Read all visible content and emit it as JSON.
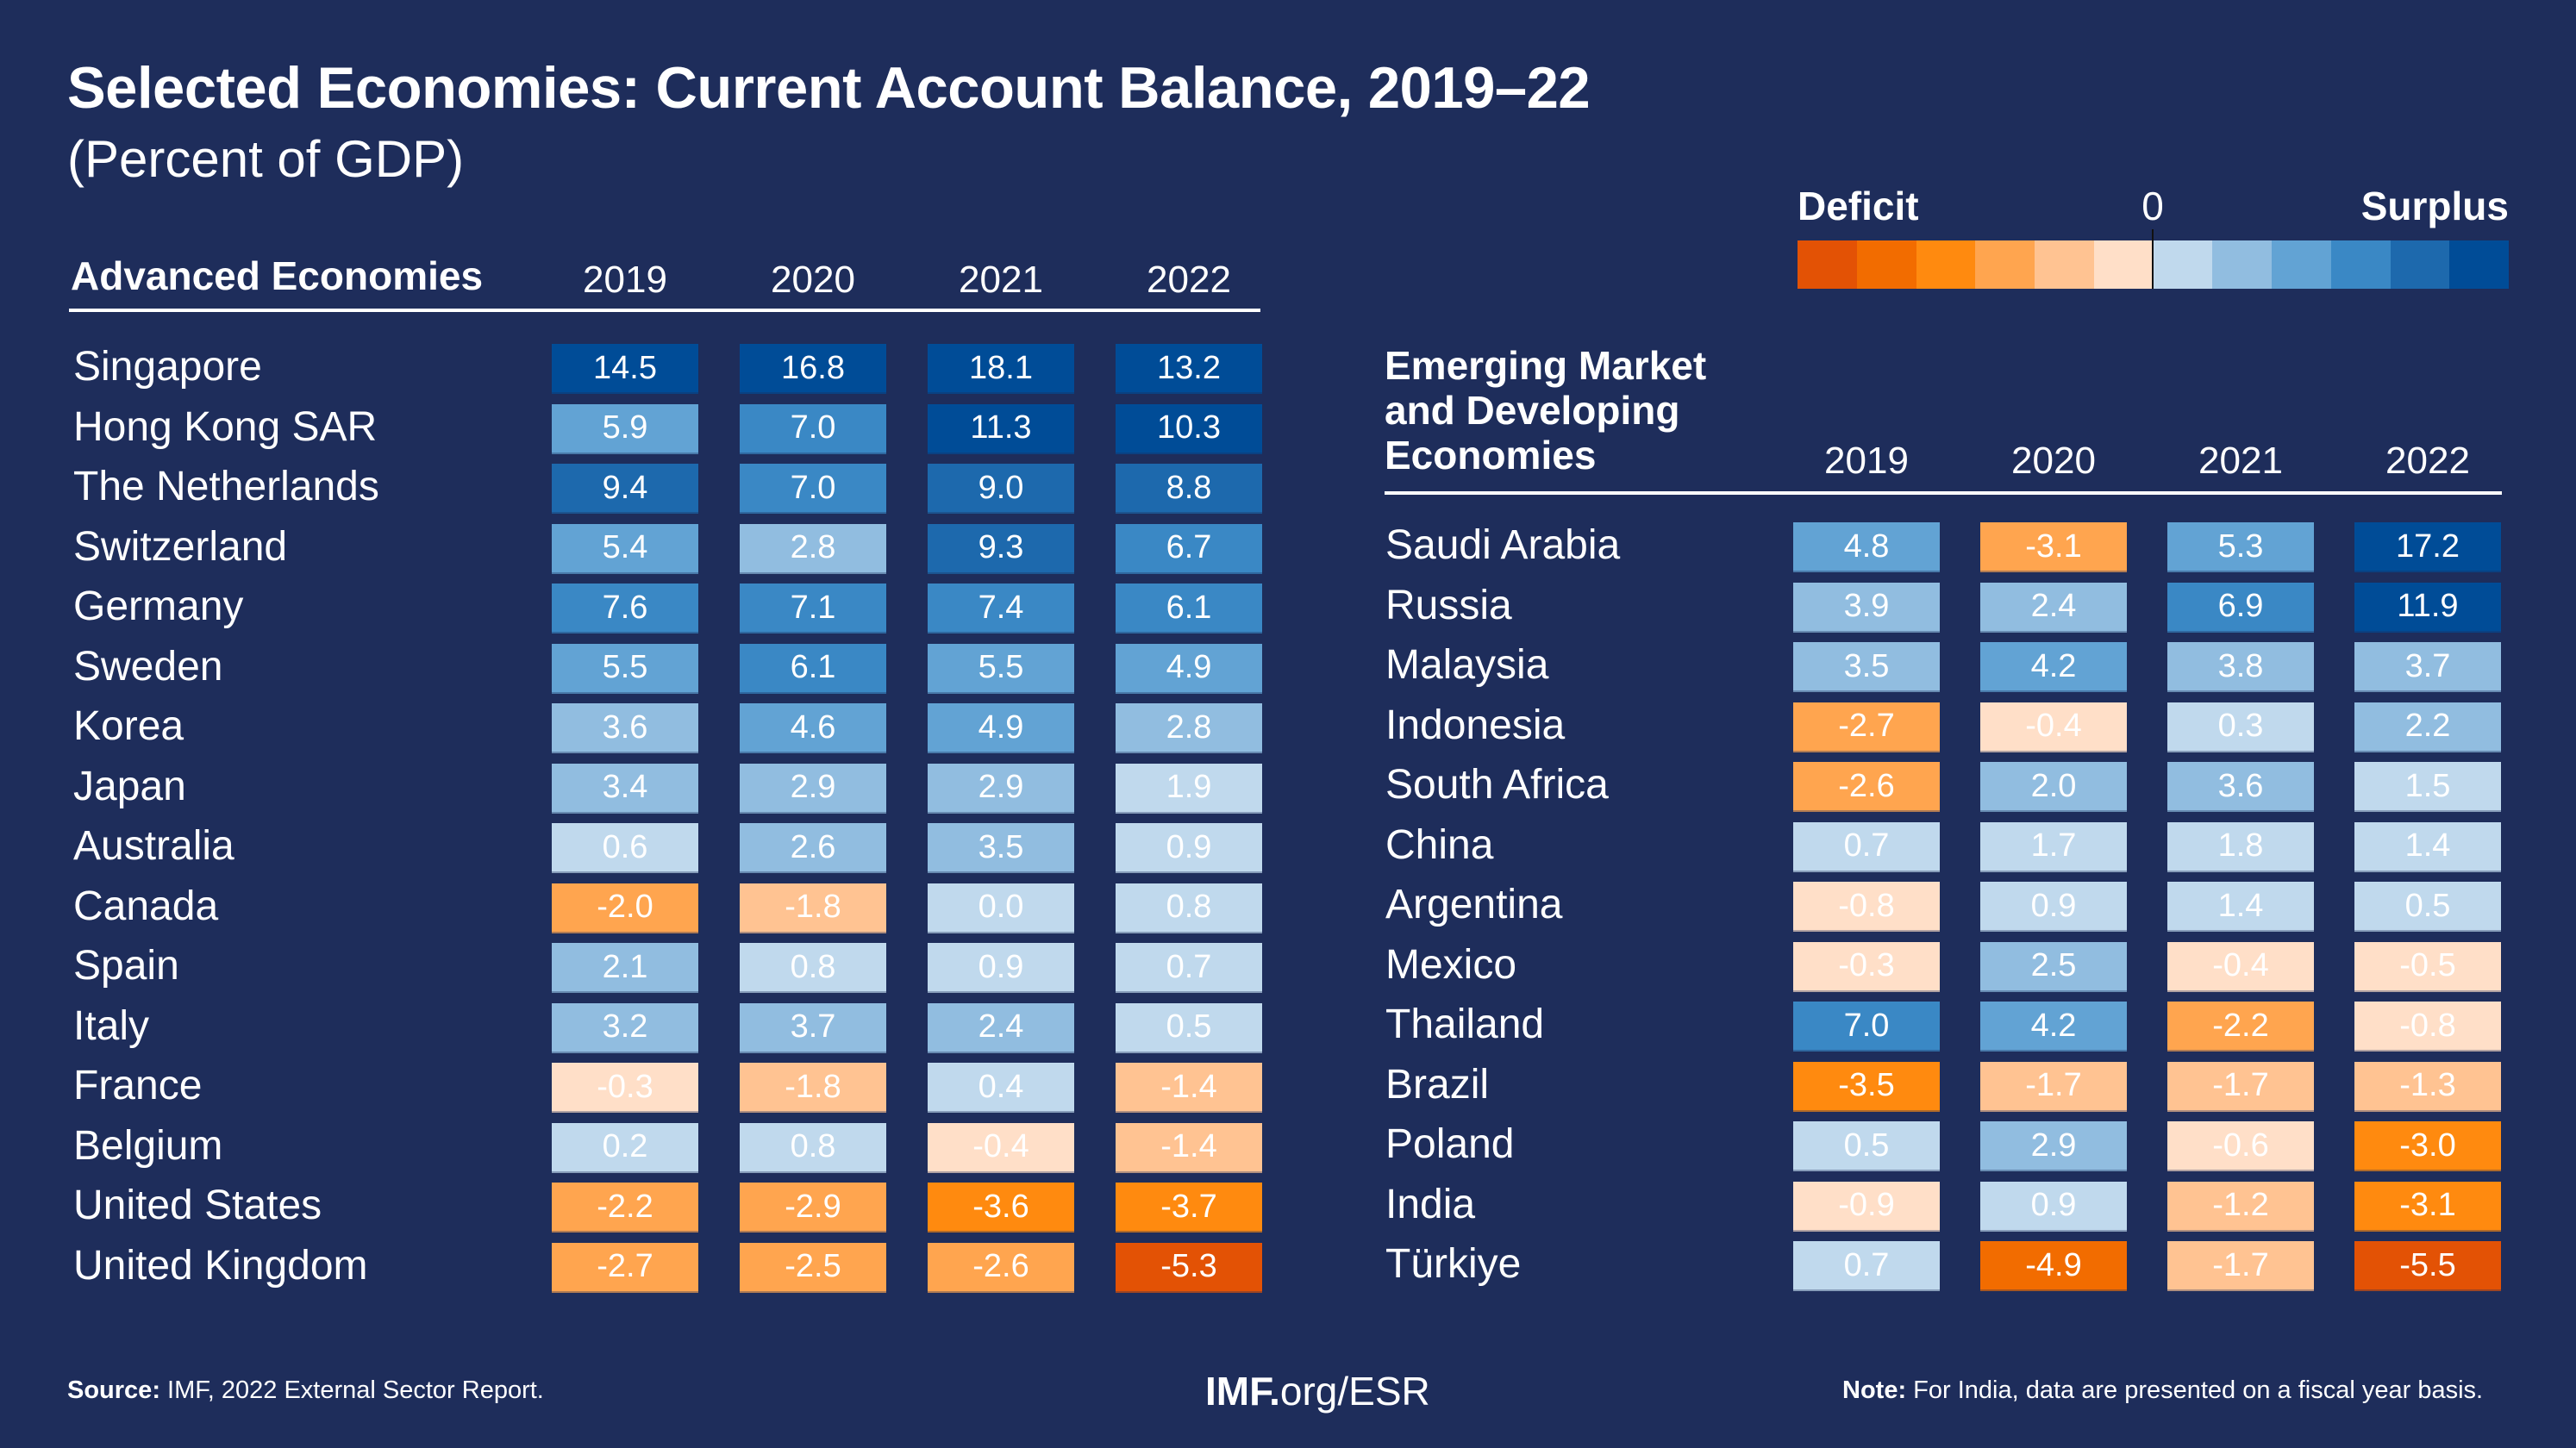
{
  "header": {
    "title": "Selected Economies: Current Account Balance, 2019–22",
    "subtitle": "(Percent of GDP)"
  },
  "legend": {
    "deficit_label": "Deficit",
    "zero_label": "0",
    "surplus_label": "Surplus",
    "colors": [
      "#e35205",
      "#f26c00",
      "#ff8a0f",
      "#ffa54f",
      "#ffc392",
      "#ffdfc8",
      "#c0d9ed",
      "#91bde0",
      "#62a3d4",
      "#3a88c5",
      "#1d69ad",
      "#004c97"
    ],
    "bins": [
      -6,
      -5,
      -4,
      -3,
      -2,
      -1,
      1,
      2,
      3,
      4,
      5,
      6
    ]
  },
  "footer": {
    "source_label": "Source:",
    "source_text": " IMF, 2022 External Sector Report.",
    "url_bold": "IMF.",
    "url_rest": "org/ESR",
    "note_label": "Note:",
    "note_text": " For India, data are presented on a fiscal year basis."
  },
  "chart_data": {
    "type": "heatmap",
    "title": "Selected Economies: Current Account Balance, 2019–22",
    "subtitle": "(Percent of GDP)",
    "unit": "Percent of GDP",
    "legend_placement": "top-right",
    "color_scale": "diverging: orange = deficit, blue = surplus, centered at 0",
    "years": [
      "2019",
      "2020",
      "2021",
      "2022"
    ],
    "tables": [
      {
        "title": "Advanced Economies",
        "rows": [
          {
            "country": "Singapore",
            "values": [
              14.5,
              16.8,
              18.1,
              13.2
            ],
            "bins": [
              6,
              6,
              6,
              6
            ]
          },
          {
            "country": "Hong Kong SAR",
            "values": [
              5.9,
              7.0,
              11.3,
              10.3
            ],
            "bins": [
              3,
              4,
              6,
              6
            ]
          },
          {
            "country": "The Netherlands",
            "values": [
              9.4,
              7.0,
              9.0,
              8.8
            ],
            "bins": [
              5,
              4,
              5,
              5
            ]
          },
          {
            "country": "Switzerland",
            "values": [
              5.4,
              2.8,
              9.3,
              6.7
            ],
            "bins": [
              3,
              2,
              5,
              4
            ]
          },
          {
            "country": "Germany",
            "values": [
              7.6,
              7.1,
              7.4,
              6.1
            ],
            "bins": [
              4,
              4,
              4,
              4
            ]
          },
          {
            "country": "Sweden",
            "values": [
              5.5,
              6.1,
              5.5,
              4.9
            ],
            "bins": [
              3,
              4,
              3,
              3
            ]
          },
          {
            "country": "Korea",
            "values": [
              3.6,
              4.6,
              4.9,
              2.8
            ],
            "bins": [
              2,
              3,
              3,
              2
            ]
          },
          {
            "country": "Japan",
            "values": [
              3.4,
              2.9,
              2.9,
              1.9
            ],
            "bins": [
              2,
              2,
              2,
              1
            ]
          },
          {
            "country": "Australia",
            "values": [
              0.6,
              2.6,
              3.5,
              0.9
            ],
            "bins": [
              1,
              2,
              2,
              1
            ]
          },
          {
            "country": "Canada",
            "values": [
              -2.0,
              -1.8,
              0.0,
              0.8
            ],
            "bins": [
              -3,
              -2,
              1,
              1
            ]
          },
          {
            "country": "Spain",
            "values": [
              2.1,
              0.8,
              0.9,
              0.7
            ],
            "bins": [
              2,
              1,
              1,
              1
            ]
          },
          {
            "country": "Italy",
            "values": [
              3.2,
              3.7,
              2.4,
              0.5
            ],
            "bins": [
              2,
              2,
              2,
              1
            ]
          },
          {
            "country": "France",
            "values": [
              -0.3,
              -1.8,
              0.4,
              -1.4
            ],
            "bins": [
              -1,
              -2,
              1,
              -2
            ]
          },
          {
            "country": "Belgium",
            "values": [
              0.2,
              0.8,
              -0.4,
              -1.4
            ],
            "bins": [
              1,
              1,
              -1,
              -2
            ]
          },
          {
            "country": "United States",
            "values": [
              -2.2,
              -2.9,
              -3.6,
              -3.7
            ],
            "bins": [
              -3,
              -3,
              -4,
              -4
            ]
          },
          {
            "country": "United Kingdom",
            "values": [
              -2.7,
              -2.5,
              -2.6,
              -5.3
            ],
            "bins": [
              -3,
              -3,
              -3,
              -6
            ]
          }
        ]
      },
      {
        "title": "Emerging Market and Developing Economies",
        "title_lines": [
          "Emerging Market",
          "and Developing",
          "Economies"
        ],
        "rows": [
          {
            "country": "Saudi Arabia",
            "values": [
              4.8,
              -3.1,
              5.3,
              17.2
            ],
            "bins": [
              3,
              -3,
              3,
              6
            ]
          },
          {
            "country": "Russia",
            "values": [
              3.9,
              2.4,
              6.9,
              11.9
            ],
            "bins": [
              2,
              2,
              4,
              6
            ]
          },
          {
            "country": "Malaysia",
            "values": [
              3.5,
              4.2,
              3.8,
              3.7
            ],
            "bins": [
              2,
              3,
              2,
              2
            ]
          },
          {
            "country": "Indonesia",
            "values": [
              -2.7,
              -0.4,
              0.3,
              2.2
            ],
            "bins": [
              -3,
              -1,
              1,
              2
            ]
          },
          {
            "country": "South Africa",
            "values": [
              -2.6,
              2.0,
              3.6,
              1.5
            ],
            "bins": [
              -3,
              2,
              2,
              1
            ]
          },
          {
            "country": "China",
            "values": [
              0.7,
              1.7,
              1.8,
              1.4
            ],
            "bins": [
              1,
              1,
              1,
              1
            ]
          },
          {
            "country": "Argentina",
            "values": [
              -0.8,
              0.9,
              1.4,
              0.5
            ],
            "bins": [
              -1,
              1,
              1,
              1
            ]
          },
          {
            "country": "Mexico",
            "values": [
              -0.3,
              2.5,
              -0.4,
              -0.5
            ],
            "bins": [
              -1,
              2,
              -1,
              -1
            ]
          },
          {
            "country": "Thailand",
            "values": [
              7.0,
              4.2,
              -2.2,
              -0.8
            ],
            "bins": [
              4,
              3,
              -3,
              -1
            ]
          },
          {
            "country": "Brazil",
            "values": [
              -3.5,
              -1.7,
              -1.7,
              -1.3
            ],
            "bins": [
              -4,
              -2,
              -2,
              -2
            ]
          },
          {
            "country": "Poland",
            "values": [
              0.5,
              2.9,
              -0.6,
              -3.0
            ],
            "bins": [
              1,
              2,
              -1,
              -4
            ]
          },
          {
            "country": "India",
            "values": [
              -0.9,
              0.9,
              -1.2,
              -3.1
            ],
            "bins": [
              -1,
              1,
              -2,
              -4
            ]
          },
          {
            "country": "Türkiye",
            "values": [
              0.7,
              -4.9,
              -1.7,
              -5.5
            ],
            "bins": [
              1,
              -5,
              -2,
              -6
            ]
          }
        ]
      }
    ],
    "source": "Source: IMF, 2022 External Sector Report.",
    "note": "Note: For India, data are presented on a fiscal year basis."
  }
}
